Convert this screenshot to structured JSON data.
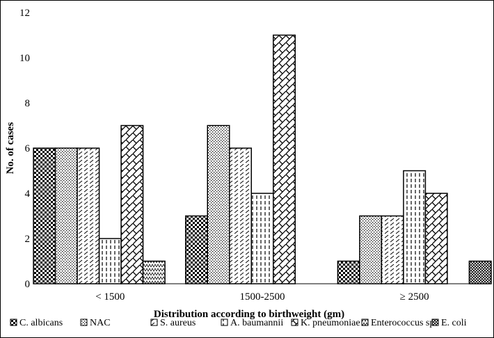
{
  "chart_data": {
    "type": "bar",
    "xlabel": "Distribution according to birthweight (gm)",
    "ylabel": "No. of cases",
    "ylim": [
      0,
      12
    ],
    "yticks": [
      0,
      2,
      4,
      6,
      8,
      10,
      12
    ],
    "grid": false,
    "legend": "bottom",
    "categories": [
      "< 1500",
      "1500-2500",
      "≥ 2500"
    ],
    "series": [
      {
        "name": "C. albicans",
        "values": [
          6,
          3,
          1
        ],
        "pattern": "checker"
      },
      {
        "name": "NAC",
        "values": [
          6,
          7,
          3
        ],
        "pattern": "dots"
      },
      {
        "name": "S. aureus",
        "values": [
          6,
          6,
          3
        ],
        "pattern": "dashes"
      },
      {
        "name": "A. baumannii",
        "values": [
          2,
          4,
          5
        ],
        "pattern": "vdash"
      },
      {
        "name": "K. pneumoniae",
        "values": [
          7,
          11,
          4
        ],
        "pattern": "diagbrick"
      },
      {
        "name": "Enterococcus sp.",
        "values": [
          1,
          0,
          0
        ],
        "pattern": "zigzag"
      },
      {
        "name": "E. coli",
        "values": [
          0,
          0,
          1
        ],
        "pattern": "crosshatch"
      }
    ]
  }
}
